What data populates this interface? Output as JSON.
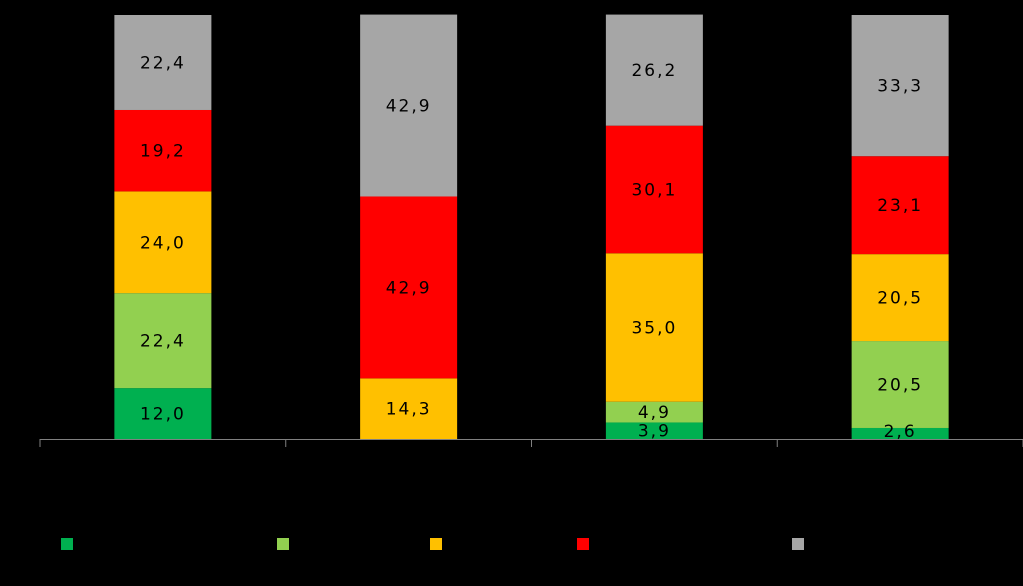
{
  "chart_data": {
    "type": "bar",
    "stacked": true,
    "orientation": "vertical",
    "percent_stacked": true,
    "categories": [
      "",
      "",
      "",
      ""
    ],
    "ylim": [
      0,
      100
    ],
    "grid": false,
    "legend_position": "bottom",
    "series": [
      {
        "color": "#00B050",
        "values": [
          12.0,
          0.0,
          3.9,
          2.6
        ],
        "labels": [
          "12,0",
          "",
          "3,9",
          "2,6"
        ]
      },
      {
        "color": "#92D050",
        "values": [
          22.4,
          0.0,
          4.9,
          20.5
        ],
        "labels": [
          "22,4",
          "",
          "4,9",
          "20,5"
        ]
      },
      {
        "color": "#FFC000",
        "values": [
          24.0,
          14.3,
          35.0,
          20.5
        ],
        "labels": [
          "24,0",
          "14,3",
          "35,0",
          "20,5"
        ]
      },
      {
        "color": "#FF0000",
        "values": [
          19.2,
          42.9,
          30.1,
          23.1
        ],
        "labels": [
          "19,2",
          "42,9",
          "30,1",
          "23,1"
        ]
      },
      {
        "color": "#A6A6A6",
        "values": [
          22.4,
          42.9,
          26.2,
          33.3
        ],
        "labels": [
          "22,4",
          "42,9",
          "26,2",
          "33,3"
        ]
      }
    ]
  }
}
